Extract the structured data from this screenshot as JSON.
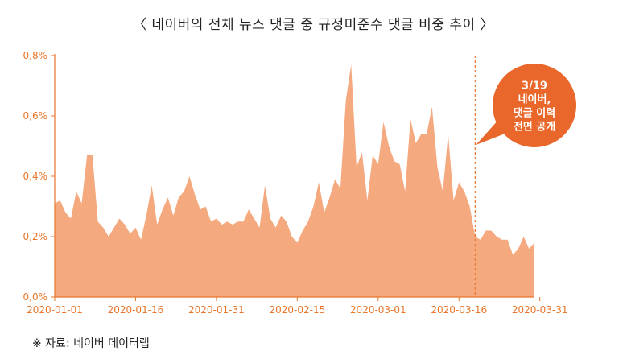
{
  "title": "〈 네이버의 전체 뉴스 댓글 중 규정미준수 댓글 비중 추이 〉",
  "source": "※ 자료: 네이버 데이터랩",
  "annotation": {
    "lines": [
      "3/19",
      "네이버,",
      "댓글 이력",
      "전면 공개"
    ],
    "date": "2020-03-19"
  },
  "colors": {
    "area_fill": "#f5a97f",
    "axis": "#e9762b",
    "callout": "#e9672a",
    "dashed_line": "#e9762b"
  },
  "chart_data": {
    "type": "area",
    "title": "",
    "xlabel": "",
    "ylabel": "",
    "ylim": [
      0,
      0.8
    ],
    "y_ticks": [
      "0,0%",
      "0,2%",
      "0,4%",
      "0,6%",
      "0,8%"
    ],
    "x_ticks": [
      "2020-01-01",
      "2020-01-16",
      "2020-01-31",
      "2020-02-15",
      "2020-03-01",
      "2020-03-16",
      "2020-03-31"
    ],
    "x_start": "2020-01-01",
    "grid": false,
    "series": [
      {
        "values": [
          0.31,
          0.32,
          0.28,
          0.26,
          0.35,
          0.31,
          0.47,
          0.47,
          0.25,
          0.23,
          0.2,
          0.23,
          0.26,
          0.24,
          0.21,
          0.23,
          0.19,
          0.27,
          0.37,
          0.24,
          0.29,
          0.33,
          0.27,
          0.33,
          0.35,
          0.4,
          0.34,
          0.29,
          0.3,
          0.25,
          0.26,
          0.24,
          0.25,
          0.24,
          0.25,
          0.25,
          0.29,
          0.26,
          0.23,
          0.37,
          0.26,
          0.23,
          0.27,
          0.25,
          0.2,
          0.18,
          0.22,
          0.25,
          0.3,
          0.38,
          0.28,
          0.33,
          0.39,
          0.36,
          0.65,
          0.77,
          0.43,
          0.48,
          0.32,
          0.47,
          0.44,
          0.58,
          0.5,
          0.45,
          0.44,
          0.35,
          0.59,
          0.51,
          0.54,
          0.54,
          0.63,
          0.43,
          0.35,
          0.54,
          0.32,
          0.38,
          0.35,
          0.3,
          0.2,
          0.19,
          0.22,
          0.22,
          0.2,
          0.19,
          0.19,
          0.14,
          0.16,
          0.2,
          0.16,
          0.18
        ]
      }
    ]
  }
}
